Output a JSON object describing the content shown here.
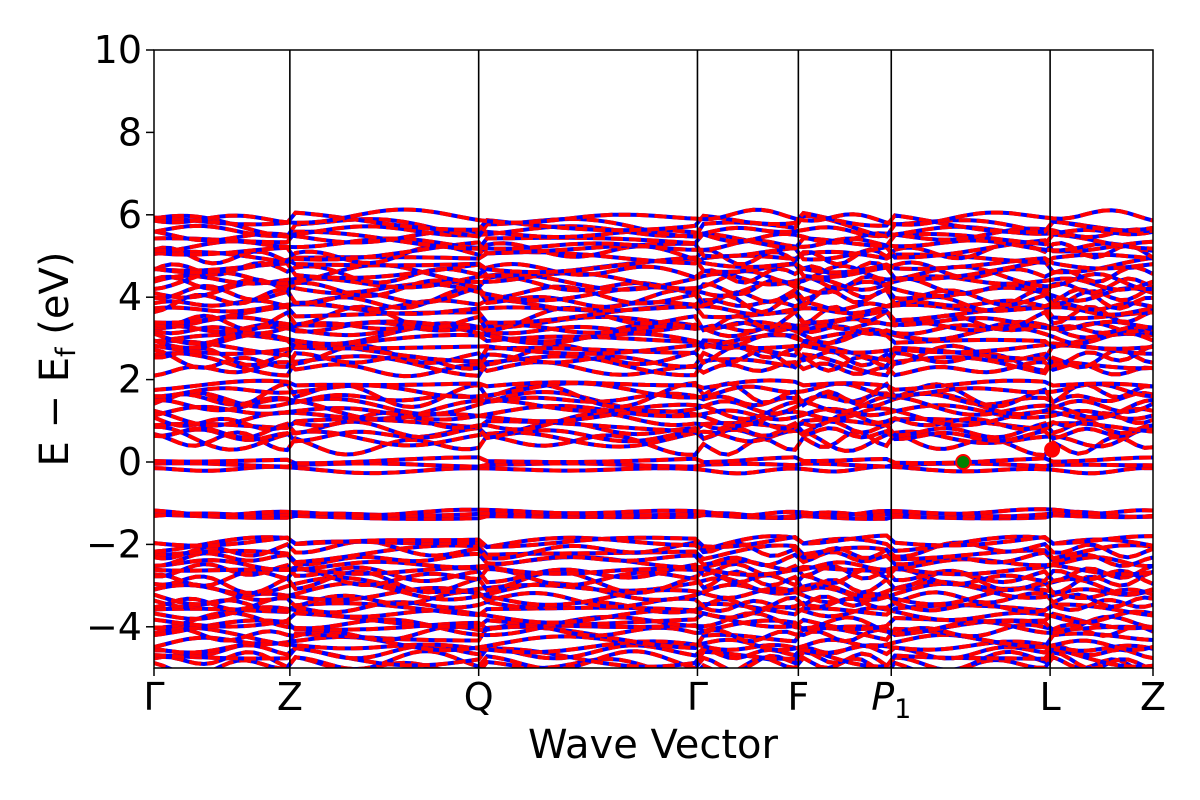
{
  "chart_data": {
    "type": "line",
    "title": "",
    "xlabel": "Wave Vector",
    "ylabel": "E − E",
    "ylabel_subscript": "f",
    "ylabel_unit": " (eV)",
    "ylim": [
      -5,
      10
    ],
    "y_ticks": [
      -4,
      -2,
      0,
      2,
      4,
      6,
      8,
      10
    ],
    "y_tick_labels": [
      "−4",
      "−2",
      "0",
      "2",
      "4",
      "6",
      "8",
      "10"
    ],
    "k_path_labels": [
      "Γ",
      "Z",
      "Q",
      "Γ",
      "F",
      "P",
      "L",
      "Z"
    ],
    "k_path_label_subscripts": [
      "",
      "",
      "",
      "",
      "",
      "1",
      "",
      ""
    ],
    "k_path_positions": [
      0.0,
      0.136,
      0.325,
      0.544,
      0.645,
      0.738,
      0.897,
      1.0
    ],
    "xlim": [
      0,
      1
    ],
    "grid": false,
    "series_colors": {
      "spin_up": "#ff0000",
      "spin_down": "#0000ff"
    },
    "band_style": "dashed overlay of red and blue",
    "band_energy_regions": [
      {
        "emin": -5.0,
        "emax": -1.85,
        "dense": true
      },
      {
        "emin": -1.35,
        "emax": -1.2,
        "dense": false
      },
      {
        "emin": -0.25,
        "emax": 0.1,
        "dense": false
      },
      {
        "emin": 0.4,
        "emax": 1.9,
        "dense": true
      },
      {
        "emin": 2.2,
        "emax": 3.3,
        "dense": true
      },
      {
        "emin": 3.2,
        "emax": 6.0,
        "dense": true
      }
    ],
    "markers": [
      {
        "label": "vbm",
        "x": 0.81,
        "y": 0.0,
        "color": "#008000",
        "edge": "#ff0000"
      },
      {
        "label": "cbm",
        "x": 0.899,
        "y": 0.3,
        "color": "#ff0000",
        "edge": "#ff0000"
      }
    ]
  }
}
